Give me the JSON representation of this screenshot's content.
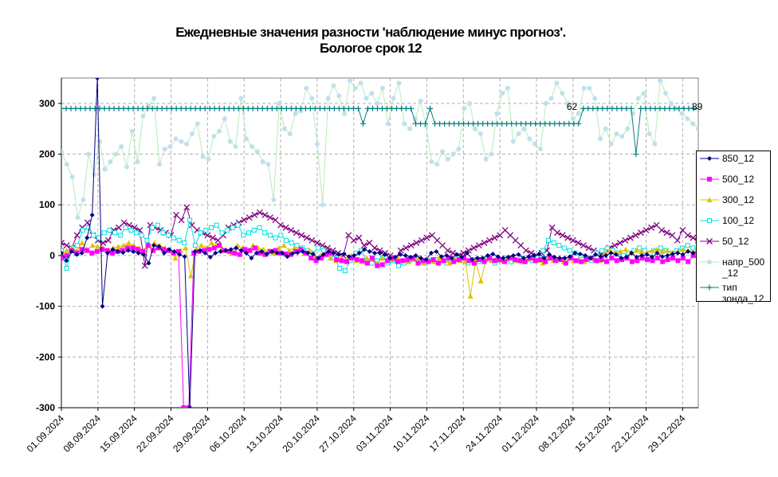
{
  "title_line1": "Ежедневные значения разности 'наблюдение минус прогноз'.",
  "title_line2": "Бологое    срок 12",
  "chart_data": {
    "type": "line",
    "ylim": [
      -300,
      350
    ],
    "yticks": [
      -300,
      -200,
      -100,
      0,
      100,
      200,
      300
    ],
    "grid": true,
    "legend_position": "right",
    "x_tick_labels": [
      "01.09.2024",
      "08.09.2024",
      "15.09.2024",
      "22.09.2024",
      "29.09.2024",
      "06.10.2024",
      "13.10.2024",
      "20.10.2024",
      "27.10.2024",
      "03.11.2024",
      "10.11.2024",
      "17.11.2024",
      "24.11.2024",
      "01.12.2024",
      "08.12.2024",
      "15.12.2024",
      "22.12.2024",
      "29.12.2024"
    ],
    "annotations": [
      {
        "text": "62",
        "x": 98
      },
      {
        "text": "89",
        "x": 122
      }
    ],
    "series": [
      {
        "name": "850_12",
        "color": "#000080",
        "marker": "diamond",
        "values": [
          5,
          -10,
          8,
          2,
          5,
          35,
          80,
          350,
          -100,
          5,
          12,
          8,
          6,
          10,
          8,
          5,
          2,
          -15,
          20,
          18,
          5,
          12,
          8,
          2,
          -2,
          -300,
          8,
          10,
          5,
          -3,
          5,
          8,
          10,
          12,
          15,
          10,
          5,
          -5,
          5,
          8,
          3,
          8,
          5,
          5,
          -2,
          4,
          6,
          8,
          5,
          3,
          -5,
          2,
          8,
          5,
          2,
          3,
          -2,
          0,
          5,
          12,
          8,
          5,
          5,
          2,
          -5,
          -3,
          2,
          0,
          -3,
          0,
          -5,
          -8,
          5,
          8,
          -2,
          0,
          -5,
          2,
          -3,
          5,
          -8,
          -5,
          -5,
          0,
          3,
          -2,
          -5,
          -3,
          0,
          2,
          -5,
          -2,
          0,
          3,
          -5,
          2,
          -3,
          -5,
          -5,
          -2,
          5,
          3,
          0,
          -5,
          2,
          -2,
          0,
          5,
          2,
          -5,
          -3,
          5,
          -3,
          0,
          2,
          -3,
          5,
          -2,
          0,
          3,
          5,
          2,
          8,
          5,
          10
        ]
      },
      {
        "name": "500_12",
        "color": "#ff00ff",
        "marker": "square",
        "values": [
          -5,
          0,
          10,
          5,
          12,
          10,
          5,
          8,
          12,
          10,
          5,
          8,
          10,
          15,
          15,
          12,
          8,
          20,
          10,
          15,
          12,
          10,
          5,
          8,
          -300,
          -300,
          5,
          8,
          10,
          12,
          15,
          20,
          10,
          8,
          5,
          2,
          12,
          10,
          15,
          5,
          2,
          8,
          10,
          5,
          3,
          2,
          8,
          12,
          5,
          -5,
          -10,
          -5,
          2,
          5,
          -8,
          -10,
          -12,
          -5,
          -8,
          -10,
          -15,
          -5,
          -20,
          -18,
          -10,
          -5,
          -12,
          -10,
          -8,
          -5,
          -15,
          -10,
          -12,
          -8,
          -15,
          -10,
          -5,
          -12,
          -8,
          -5,
          -10,
          -15,
          -8,
          -12,
          -5,
          -10,
          -8,
          -12,
          -5,
          -8,
          -10,
          -12,
          -5,
          -10,
          -8,
          -12,
          -5,
          -10,
          -8,
          -15,
          -5,
          -10,
          -12,
          -8,
          -5,
          -10,
          -8,
          -12,
          -5,
          -10,
          -8,
          -5,
          -12,
          -10,
          -5,
          -8,
          -10,
          -5,
          -12,
          -8,
          -5,
          -10,
          -5,
          -12,
          0,
          -5
        ]
      },
      {
        "name": "300_12",
        "color": "#e0c000",
        "marker": "triangle",
        "values": [
          5,
          10,
          15,
          10,
          25,
          12,
          20,
          18,
          15,
          10,
          15,
          18,
          20,
          25,
          20,
          15,
          10,
          20,
          25,
          20,
          15,
          10,
          -5,
          10,
          15,
          -40,
          12,
          20,
          15,
          25,
          20,
          15,
          10,
          5,
          20,
          15,
          10,
          20,
          15,
          12,
          10,
          5,
          15,
          20,
          10,
          15,
          12,
          5,
          10,
          -5,
          0,
          5,
          -5,
          -10,
          -5,
          -8,
          0,
          -10,
          -12,
          -5,
          -8,
          -15,
          -5,
          -10,
          -8,
          -5,
          -10,
          -12,
          -8,
          -5,
          -15,
          -10,
          -12,
          -5,
          -10,
          -15,
          -8,
          -10,
          -12,
          -80,
          -10,
          -50,
          -8,
          -10,
          -5,
          -10,
          -8,
          -5,
          -10,
          -12,
          -8,
          -5,
          -10,
          -15,
          -5,
          -10,
          -8,
          -12,
          -5,
          -10,
          -8,
          -12,
          -5,
          -8,
          -10,
          5,
          10,
          5,
          8,
          12,
          5,
          10,
          8,
          5,
          10,
          12,
          8,
          10,
          5,
          8,
          12,
          10,
          8,
          5
        ]
      },
      {
        "name": "100_12",
        "color": "#00e0e0",
        "marker": "open-square",
        "values": [
          10,
          -25,
          15,
          20,
          50,
          55,
          40,
          35,
          45,
          50,
          45,
          40,
          55,
          50,
          45,
          40,
          30,
          55,
          60,
          45,
          40,
          35,
          30,
          25,
          70,
          20,
          45,
          50,
          55,
          60,
          45,
          50,
          55,
          60,
          40,
          45,
          50,
          55,
          45,
          40,
          35,
          40,
          30,
          25,
          20,
          15,
          10,
          5,
          15,
          10,
          5,
          -5,
          -25,
          -30,
          -10,
          5,
          10,
          -10,
          -15,
          -10,
          -5,
          -15,
          -10,
          -20,
          -15,
          -10,
          -5,
          -12,
          -15,
          -10,
          -8,
          -5,
          -15,
          -10,
          -5,
          -10,
          -15,
          -8,
          -12,
          -10,
          -5,
          -15,
          -10,
          -5,
          -12,
          -10,
          -5,
          -8,
          -10,
          -5,
          10,
          30,
          25,
          20,
          15,
          10,
          5,
          0,
          -5,
          -10,
          5,
          10,
          15,
          10,
          5,
          0,
          5,
          10,
          15,
          10,
          5,
          10,
          15,
          10,
          5,
          10,
          15,
          20,
          15,
          10
        ]
      },
      {
        "name": "50_12",
        "color": "#800080",
        "marker": "x",
        "values": [
          25,
          20,
          15,
          40,
          55,
          65,
          40,
          30,
          25,
          30,
          50,
          55,
          65,
          60,
          55,
          50,
          -20,
          60,
          55,
          50,
          45,
          40,
          80,
          70,
          95,
          60,
          50,
          45,
          40,
          35,
          30,
          40,
          55,
          60,
          65,
          70,
          75,
          80,
          85,
          80,
          75,
          70,
          60,
          55,
          50,
          45,
          40,
          35,
          30,
          25,
          20,
          15,
          10,
          5,
          0,
          40,
          30,
          35,
          20,
          25,
          15,
          10,
          5,
          0,
          -5,
          10,
          15,
          20,
          25,
          30,
          35,
          40,
          30,
          20,
          10,
          5,
          0,
          5,
          10,
          15,
          20,
          25,
          30,
          35,
          40,
          50,
          40,
          30,
          20,
          10,
          5,
          0,
          5,
          10,
          55,
          45,
          40,
          35,
          30,
          25,
          20,
          15,
          10,
          5,
          0,
          15,
          20,
          25,
          30,
          35,
          40,
          45,
          50,
          55,
          60,
          50,
          45,
          40,
          30,
          50,
          40,
          35,
          30
        ]
      },
      {
        "name": "напр_500\n_12",
        "color": "#c0e0ec",
        "marker": "dot",
        "values": [
          205,
          180,
          155,
          75,
          110,
          200,
          160,
          225,
          170,
          185,
          200,
          215,
          175,
          245,
          185,
          275,
          295,
          310,
          180,
          210,
          215,
          230,
          225,
          220,
          240,
          260,
          195,
          190,
          235,
          245,
          270,
          225,
          215,
          310,
          230,
          215,
          205,
          185,
          180,
          110,
          300,
          250,
          240,
          280,
          285,
          330,
          310,
          220,
          100,
          310,
          335,
          315,
          280,
          345,
          330,
          340,
          310,
          320,
          300,
          330,
          260,
          310,
          340,
          260,
          250,
          270,
          305,
          255,
          185,
          180,
          205,
          190,
          200,
          210,
          290,
          300,
          250,
          240,
          190,
          200,
          280,
          320,
          330,
          225,
          240,
          250,
          230,
          220,
          210,
          300,
          310,
          340,
          320,
          300,
          270,
          280,
          330,
          330,
          310,
          230,
          250,
          220,
          240,
          235,
          250,
          280,
          310,
          320,
          240,
          220,
          345,
          320,
          300,
          290,
          280,
          270,
          260,
          250
        ]
      },
      {
        "name": "тип\nзонда_12",
        "color": "#008080",
        "marker": "plus",
        "values": [
          290,
          290,
          290,
          290,
          290,
          290,
          290,
          290,
          290,
          290,
          290,
          290,
          290,
          290,
          290,
          290,
          290,
          290,
          290,
          290,
          290,
          290,
          290,
          290,
          290,
          290,
          290,
          290,
          290,
          290,
          290,
          290,
          290,
          290,
          290,
          290,
          290,
          290,
          290,
          290,
          290,
          290,
          290,
          290,
          290,
          290,
          290,
          290,
          290,
          290,
          290,
          290,
          290,
          290,
          290,
          290,
          290,
          290,
          290,
          290,
          290,
          290,
          290,
          260,
          290,
          290,
          290,
          290,
          290,
          290,
          290,
          290,
          290,
          290,
          260,
          260,
          260,
          290,
          260,
          260,
          260,
          260,
          260,
          260,
          260,
          260,
          260,
          260,
          260,
          260,
          260,
          260,
          260,
          260,
          260,
          260,
          260,
          260,
          260,
          260,
          260,
          260,
          260,
          260,
          260,
          260,
          260,
          260,
          260,
          290,
          290,
          290,
          290,
          290,
          290,
          290,
          290,
          290,
          290,
          290,
          200,
          290,
          290,
          290,
          290,
          290,
          290,
          290,
          290,
          290,
          290,
          290,
          290,
          290
        ]
      }
    ]
  }
}
